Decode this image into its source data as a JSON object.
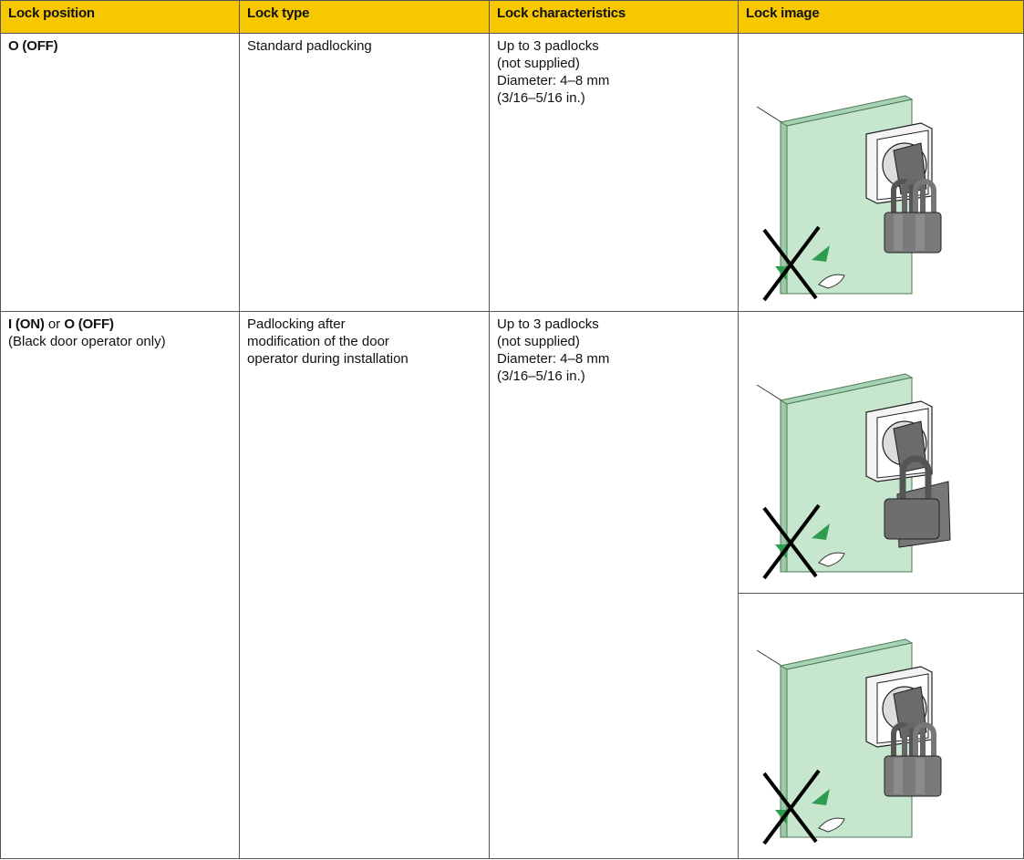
{
  "header": {
    "columns": [
      "Lock position",
      "Lock type",
      "Lock characteristics",
      "Lock image"
    ]
  },
  "table": {
    "rows": [
      {
        "position": {
          "parts": [
            "O (OFF)"
          ]
        },
        "type": [
          "Standard padlocking"
        ],
        "characteristics": [
          "Up to 3 padlocks",
          "(not supplied)",
          "Diameter: 4–8 mm",
          "(3/16–5/16 in.)"
        ]
      },
      {
        "position": {
          "parts": [
            "I (ON)",
            "or",
            "O (OFF)"
          ],
          "note": "(Black door operator only)"
        },
        "type": [
          "Padlocking after",
          "modification of the door",
          "operator during installation"
        ],
        "characteristics": [
          "Up to 3 padlocks",
          "(not supplied)",
          "Diameter: 4–8 mm",
          "(3/16–5/16 in.)"
        ]
      }
    ]
  }
}
